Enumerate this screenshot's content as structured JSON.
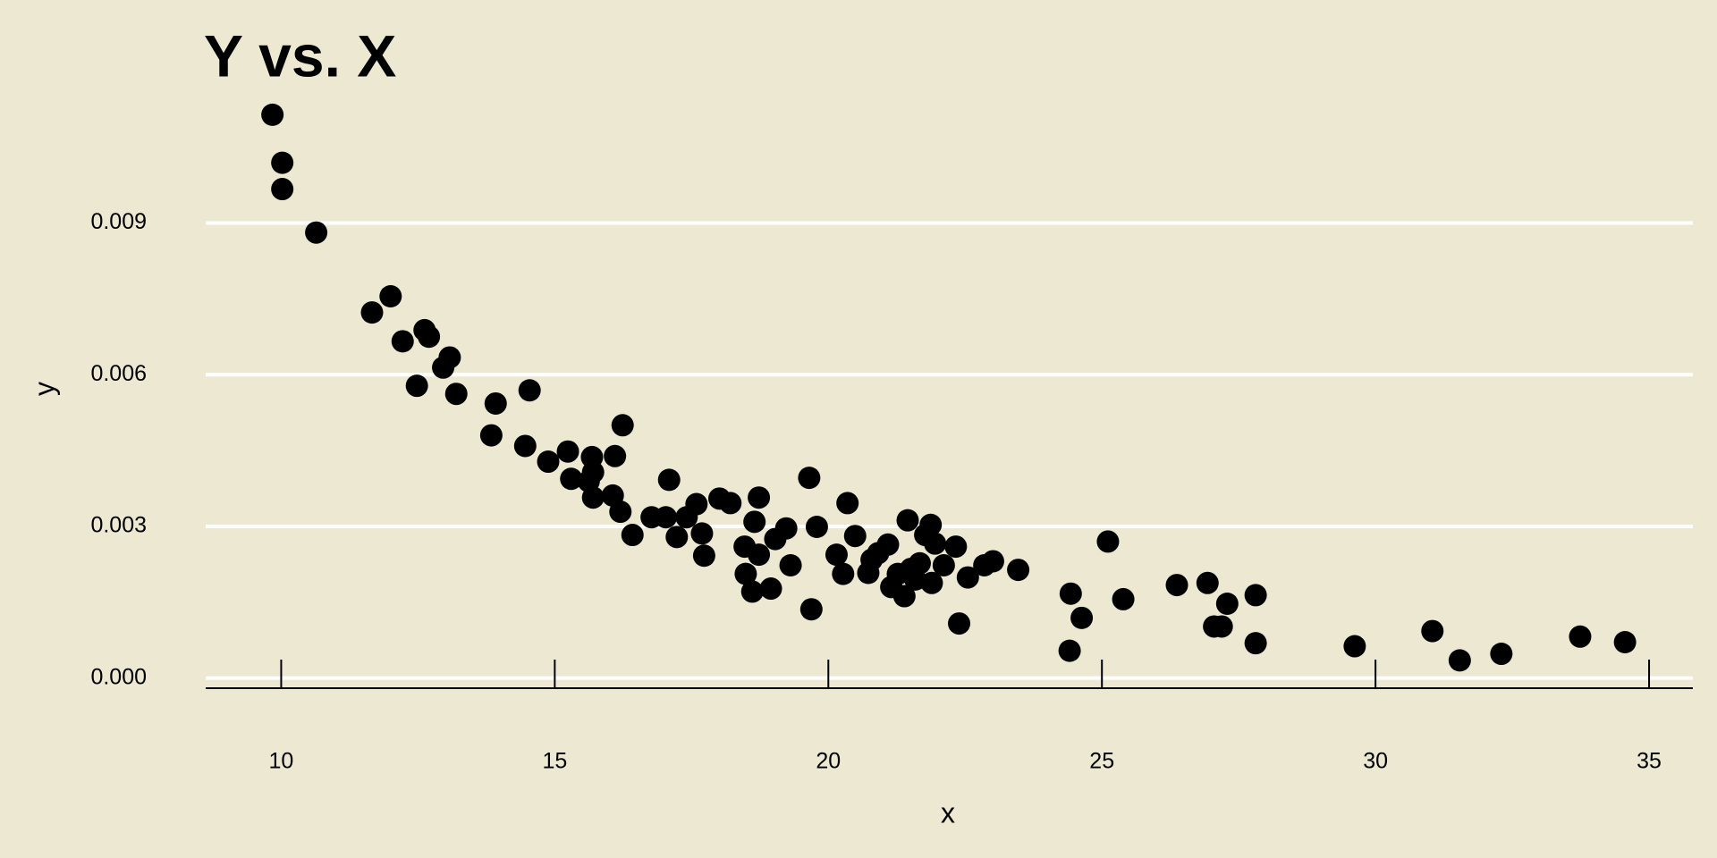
{
  "chart_data": {
    "type": "scatter",
    "title": "Y vs. X",
    "x_label": "x",
    "y_label": "y",
    "color": "#000000",
    "grid": true,
    "x": [
      9.84,
      10.02,
      10.02,
      10.64,
      11.66,
      12.0,
      12.22,
      12.48,
      12.62,
      12.7,
      12.96,
      13.08,
      13.2,
      13.84,
      13.92,
      14.46,
      14.54,
      14.88,
      15.24,
      15.3,
      15.68,
      15.7,
      15.62,
      15.7,
      16.06,
      16.1,
      16.24,
      16.2,
      16.42,
      16.77,
      17.03,
      17.09,
      17.23,
      17.41,
      17.59,
      17.69,
      17.73,
      18.01,
      18.21,
      18.47,
      18.49,
      18.65,
      18.61,
      18.73,
      18.73,
      18.95,
      19.03,
      19.23,
      19.31,
      19.65,
      19.69,
      19.79,
      20.15,
      20.27,
      20.35,
      20.49,
      20.73,
      20.79,
      20.91,
      21.09,
      21.15,
      21.27,
      21.39,
      21.45,
      21.51,
      21.59,
      21.67,
      21.77,
      21.87,
      21.89,
      21.95,
      22.11,
      22.33,
      22.39,
      22.55,
      22.85,
      23.01,
      23.47,
      24.41,
      24.43,
      24.63,
      25.11,
      25.39,
      26.37,
      26.93,
      27.05,
      27.19,
      27.29,
      27.81,
      27.81,
      29.62,
      31.04,
      31.54,
      32.3,
      33.74,
      34.56
    ],
    "values": [
      0.01114,
      0.01019,
      0.00967,
      0.00881,
      0.00723,
      0.00755,
      0.00666,
      0.00578,
      0.00688,
      0.00675,
      0.00614,
      0.00634,
      0.00562,
      0.0048,
      0.00543,
      0.00459,
      0.00569,
      0.00428,
      0.00448,
      0.00394,
      0.00437,
      0.00407,
      0.00389,
      0.00357,
      0.00361,
      0.00439,
      0.005,
      0.00329,
      0.00283,
      0.00318,
      0.00318,
      0.00392,
      0.00279,
      0.00318,
      0.00344,
      0.00286,
      0.00242,
      0.00355,
      0.00346,
      0.0026,
      0.00206,
      0.00309,
      0.00171,
      0.00357,
      0.00244,
      0.00177,
      0.00275,
      0.00296,
      0.00223,
      0.00396,
      0.00136,
      0.00299,
      0.00244,
      0.00206,
      0.00346,
      0.00281,
      0.00208,
      0.00234,
      0.00247,
      0.00264,
      0.0018,
      0.00206,
      0.00162,
      0.00312,
      0.00216,
      0.00195,
      0.00227,
      0.00283,
      0.00303,
      0.00188,
      0.00266,
      0.00223,
      0.0026,
      0.00108,
      0.00199,
      0.00223,
      0.00231,
      0.00214,
      0.00054,
      0.00167,
      0.00119,
      0.0027,
      0.00156,
      0.00184,
      0.00188,
      0.00102,
      0.00102,
      0.00147,
      0.00069,
      0.00164,
      0.00063,
      0.00093,
      0.00035,
      0.00048,
      0.00082,
      0.00071
    ],
    "xlim": [
      8.62,
      35.8
    ],
    "xticks": [
      10,
      15,
      20,
      25,
      30,
      35
    ],
    "ylim": [
      -0.0002,
      0.0115
    ],
    "yticks": [
      {
        "value": 0,
        "label": "0.000"
      },
      {
        "value": 0.003,
        "label": "0.003"
      },
      {
        "value": 0.006,
        "label": "0.006"
      },
      {
        "value": 0.009,
        "label": "0.009"
      }
    ]
  }
}
